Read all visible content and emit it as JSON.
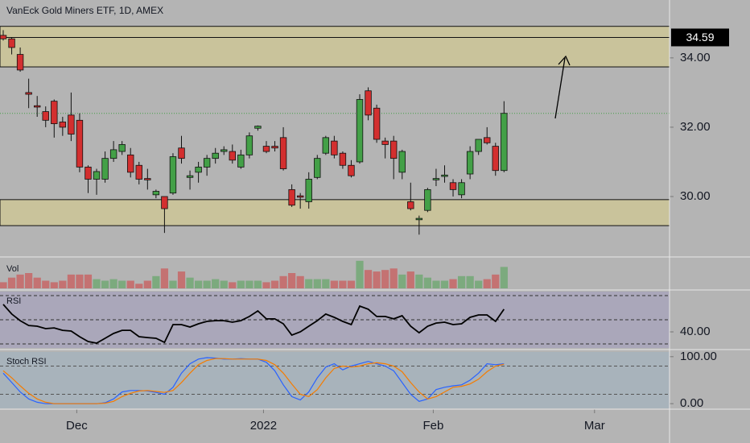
{
  "chart_data": {
    "type": "candlestick",
    "title": "VanEck Gold Miners ETF, 1D, AMEX",
    "xlim": [
      -0.38,
      78.5
    ],
    "xticks": [
      {
        "value": 8,
        "label": "Dec"
      },
      {
        "value": 30,
        "label": "2022"
      },
      {
        "value": 50,
        "label": "Feb"
      },
      {
        "value": 69,
        "label": "Mar"
      }
    ],
    "ylim": [
      28.28,
      35.67
    ],
    "yticks": [
      {
        "value": 30,
        "label": "30.00"
      },
      {
        "value": 32,
        "label": "32.00"
      },
      {
        "value": 34,
        "label": "34.00"
      }
    ],
    "price_line": {
      "value": 34.59,
      "label": "34.59"
    },
    "zones": [
      [
        33.74,
        34.91
      ],
      [
        29.16,
        29.91
      ]
    ],
    "up_color": "#43a047",
    "down_color": "#d32f2f",
    "open": [
      34.65,
      34.55,
      34.1,
      33.0,
      32.62,
      32.45,
      32.75,
      32.15,
      32.35,
      32.2,
      30.85,
      30.5,
      30.5,
      31.1,
      31.3,
      31.2,
      30.9,
      30.52,
      30.05,
      30.0,
      30.1,
      31.4,
      30.55,
      30.7,
      30.85,
      31.1,
      31.3,
      31.3,
      30.85,
      31.2,
      31.97,
      31.45,
      31.45,
      31.7,
      30.2,
      30.02,
      29.85,
      30.55,
      31.25,
      31.6,
      31.25,
      30.9,
      31.0,
      33.05,
      32.55,
      31.6,
      31.6,
      30.7,
      29.85,
      29.33,
      29.6,
      30.48,
      30.58,
      30.4,
      30.05,
      30.65,
      31.3,
      31.7,
      31.45,
      30.75
    ],
    "high": [
      34.8,
      34.6,
      34.3,
      33.4,
      32.9,
      32.6,
      32.8,
      32.3,
      33.0,
      32.4,
      30.9,
      30.8,
      31.3,
      31.6,
      31.6,
      31.4,
      31.0,
      30.8,
      30.2,
      30.0,
      31.25,
      31.75,
      30.75,
      31.0,
      31.2,
      31.4,
      31.45,
      31.5,
      31.35,
      31.85,
      32.05,
      31.6,
      31.6,
      32.0,
      30.35,
      30.1,
      30.7,
      31.2,
      31.75,
      31.75,
      31.3,
      31.05,
      32.95,
      33.15,
      32.65,
      31.7,
      31.75,
      31.35,
      30.4,
      29.45,
      30.25,
      30.8,
      30.9,
      30.5,
      30.5,
      31.45,
      31.65,
      32.0,
      31.55,
      32.75
    ],
    "low": [
      34.5,
      34.1,
      33.6,
      32.55,
      32.3,
      32.0,
      31.7,
      31.75,
      31.6,
      30.7,
      30.1,
      30.05,
      30.4,
      31.0,
      31.2,
      30.55,
      30.35,
      30.2,
      29.95,
      28.95,
      30.05,
      30.95,
      30.2,
      30.4,
      30.6,
      30.95,
      31.2,
      30.95,
      30.8,
      31.1,
      31.9,
      31.25,
      31.3,
      30.75,
      29.7,
      29.65,
      29.65,
      30.5,
      31.2,
      31.1,
      30.8,
      30.55,
      30.95,
      32.2,
      31.55,
      31.1,
      30.5,
      30.5,
      29.6,
      28.9,
      29.55,
      30.3,
      30.4,
      30.0,
      29.95,
      30.5,
      31.2,
      31.5,
      30.6,
      30.7
    ],
    "close": [
      34.55,
      34.3,
      33.65,
      32.95,
      32.58,
      32.2,
      32.1,
      32.0,
      31.8,
      30.85,
      30.5,
      30.72,
      31.1,
      31.35,
      31.5,
      30.7,
      30.5,
      30.48,
      30.15,
      29.65,
      31.15,
      31.1,
      30.6,
      30.85,
      31.1,
      31.25,
      31.35,
      31.05,
      31.2,
      31.75,
      32.03,
      31.3,
      31.4,
      30.8,
      29.75,
      29.98,
      30.5,
      31.1,
      31.7,
      31.2,
      30.9,
      30.6,
      32.8,
      32.35,
      31.65,
      31.5,
      31.1,
      31.3,
      29.65,
      29.37,
      30.2,
      30.52,
      30.62,
      30.2,
      30.4,
      31.3,
      31.65,
      31.55,
      30.75,
      32.4
    ],
    "volume": {
      "label": "Vol",
      "ylim": [
        0,
        40
      ],
      "values": [
        8,
        14,
        18,
        20,
        14,
        10,
        8,
        10,
        18,
        18,
        18,
        12,
        10,
        12,
        10,
        10,
        6,
        10,
        16,
        26,
        10,
        22,
        14,
        10,
        10,
        12,
        10,
        8,
        10,
        10,
        10,
        8,
        10,
        16,
        20,
        16,
        12,
        12,
        12,
        10,
        10,
        10,
        36,
        24,
        22,
        24,
        26,
        18,
        22,
        18,
        14,
        10,
        10,
        12,
        16,
        16,
        10,
        12,
        18,
        28
      ]
    },
    "rsi": {
      "label": "RSI",
      "color": "#000000",
      "ylim": [
        26.7,
        73.3
      ],
      "bands": [
        30,
        50,
        70
      ],
      "yticks": [
        {
          "value": 40,
          "label": "40.00"
        }
      ],
      "values": [
        62.7,
        54.7,
        49.3,
        45.3,
        44.7,
        42.7,
        43.3,
        41.3,
        40.7,
        36,
        32,
        30.7,
        34.7,
        38.7,
        41.3,
        41.3,
        36,
        35.3,
        34.7,
        31.3,
        46,
        46,
        44,
        46.7,
        48.7,
        49.3,
        49.3,
        48,
        49.3,
        52.7,
        57.3,
        50.7,
        50.7,
        46.7,
        37.3,
        40,
        44.7,
        49.3,
        54.7,
        52,
        48.7,
        46,
        61.3,
        58.7,
        52.7,
        52.7,
        50.7,
        53.3,
        44.7,
        39.3,
        44.7,
        47.3,
        48,
        46,
        46.7,
        52,
        54,
        54,
        48.7,
        58.7
      ]
    },
    "stoch": {
      "label": "Stoch RSI",
      "ylim": [
        -10,
        110
      ],
      "bands": [
        20,
        80
      ],
      "yticks": [
        {
          "value": 100,
          "label": "100.00"
        },
        {
          "value": 0,
          "label": "0.00"
        }
      ],
      "k": {
        "color": "#2962ff",
        "values": [
          65,
          45,
          25,
          10,
          3,
          0,
          0,
          0,
          0,
          0,
          0,
          0,
          2,
          10,
          25,
          28,
          28,
          27,
          24,
          20,
          35,
          65,
          85,
          95,
          98,
          97,
          95,
          95,
          96,
          95,
          95,
          88,
          70,
          40,
          15,
          8,
          25,
          55,
          78,
          85,
          72,
          80,
          85,
          90,
          85,
          80,
          70,
          45,
          20,
          5,
          10,
          30,
          35,
          38,
          40,
          50,
          65,
          85,
          83,
          85
        ]
      },
      "d": {
        "color": "#f57c00",
        "values": [
          70,
          55,
          38,
          22,
          10,
          3,
          0,
          0,
          0,
          0,
          0,
          0,
          1,
          5,
          15,
          22,
          27,
          28,
          26,
          24,
          28,
          45,
          65,
          83,
          92,
          96,
          96,
          95,
          95,
          95,
          95,
          92,
          83,
          65,
          42,
          20,
          15,
          30,
          55,
          75,
          80,
          78,
          80,
          85,
          87,
          85,
          80,
          68,
          45,
          25,
          10,
          15,
          25,
          35,
          37,
          42,
          52,
          68,
          80,
          84
        ]
      }
    }
  }
}
